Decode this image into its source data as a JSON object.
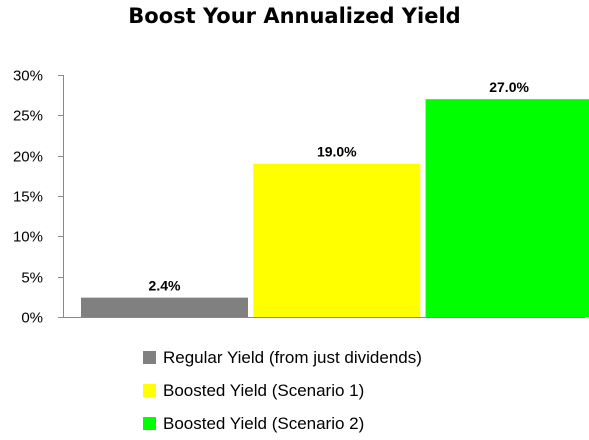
{
  "chart_data": {
    "type": "bar",
    "title": "Boost Your Annualized Yield",
    "categories": [
      "Regular Yield (from just dividends)",
      "Boosted Yield (Scenario 1)",
      "Boosted Yield (Scenario 2)"
    ],
    "values": [
      2.4,
      19.0,
      27.0
    ],
    "data_labels": [
      "2.4%",
      "19.0%",
      "27.0%"
    ],
    "colors": [
      "#808080",
      "#ffff00",
      "#00ff00"
    ],
    "ylim": [
      0,
      30
    ],
    "yticks": [
      0,
      5,
      10,
      15,
      20,
      25,
      30
    ],
    "ytick_labels": [
      "0%",
      "5%",
      "10%",
      "15%",
      "20%",
      "25%",
      "30%"
    ],
    "xlabel": "",
    "ylabel": "",
    "grid": false,
    "legend_position": "bottom"
  }
}
